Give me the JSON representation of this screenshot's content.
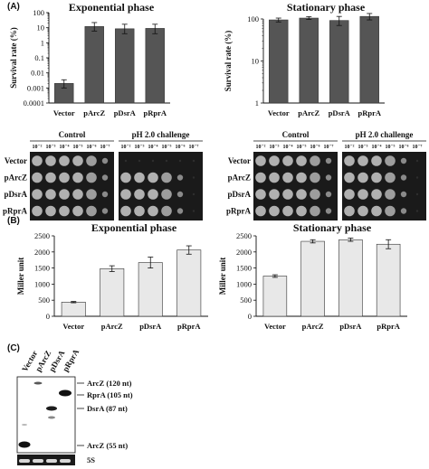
{
  "panel_labels": {
    "a": "(A)",
    "b": "(B)",
    "c": "(C)"
  },
  "chart_data": [
    {
      "id": "exp-survival",
      "type": "bar",
      "title": "Exponential phase",
      "ylabel": "Survival rate (%)",
      "yscale": "log",
      "ylim": [
        0.0001,
        100
      ],
      "ytick_labels": [
        "0.0001",
        "0.001",
        "0.01",
        "0.1",
        "1",
        "10",
        "100"
      ],
      "categories": [
        "Vector",
        "pArcZ",
        "pDsrA",
        "pRprA"
      ],
      "values": [
        0.002,
        12,
        8.5,
        9
      ],
      "errors_low": [
        0.001,
        6,
        4,
        4
      ],
      "errors_high": [
        0.0035,
        22,
        17,
        17
      ],
      "bar_color": "#555555"
    },
    {
      "id": "stat-survival",
      "type": "bar",
      "title": "Stationary phase",
      "ylabel": "Survival rate (%)",
      "yscale": "log",
      "ylim": [
        1,
        100
      ],
      "ytick_labels": [
        "1",
        "10",
        "100"
      ],
      "categories": [
        "Vector",
        "pArcZ",
        "pDsrA",
        "pRprA"
      ],
      "values": [
        95,
        105,
        92,
        115
      ],
      "errors_low": [
        85,
        97,
        70,
        95
      ],
      "errors_high": [
        105,
        114,
        115,
        135
      ],
      "bar_color": "#555555"
    },
    {
      "id": "exp-miller",
      "type": "bar",
      "title": "Exponential phase",
      "ylabel": "Miller unit",
      "ylim": [
        0,
        2500
      ],
      "ytick_labels": [
        "0",
        "500",
        "1000",
        "1500",
        "2000",
        "2500"
      ],
      "categories": [
        "Vector",
        "pArcZ",
        "pDsrA",
        "pRprA"
      ],
      "values": [
        440,
        1480,
        1670,
        2060
      ],
      "errors": [
        20,
        90,
        170,
        130
      ],
      "bar_color": "#e8e8e8"
    },
    {
      "id": "stat-miller",
      "type": "bar",
      "title": "Stationary phase",
      "ylabel": "Miller unit",
      "ylim": [
        0,
        2500
      ],
      "ytick_labels": [
        "0",
        "500",
        "1000",
        "1500",
        "2000",
        "2500"
      ],
      "categories": [
        "Vector",
        "pArcZ",
        "pDsrA",
        "pRprA"
      ],
      "values": [
        1250,
        2330,
        2380,
        2240
      ],
      "errors": [
        40,
        50,
        50,
        140
      ],
      "bar_color": "#e8e8e8"
    }
  ],
  "spot_assay": {
    "headers": {
      "control": "Control",
      "ph": "pH 2.0 challenge"
    },
    "dilutions": [
      "10⁻²",
      "10⁻³",
      "10⁻⁴",
      "10⁻⁵",
      "10⁻⁶",
      "10⁻⁷"
    ],
    "strains": [
      "Vector",
      "pArcZ",
      "pDsrA",
      "pRprA"
    ],
    "exp_surviving_ph_spots": [
      0,
      5,
      5,
      5
    ],
    "stat_surviving_ph_spots": [
      5,
      5,
      5,
      5
    ]
  },
  "northern": {
    "lanes": [
      "Vector",
      "pArcZ",
      "pDsrA",
      "pRprA"
    ],
    "bands": [
      "ArcZ (120 nt)",
      "RprA (105 nt)",
      "DsrA (87 nt)",
      "ArcZ (55 nt)"
    ],
    "loading_label": "5S"
  }
}
